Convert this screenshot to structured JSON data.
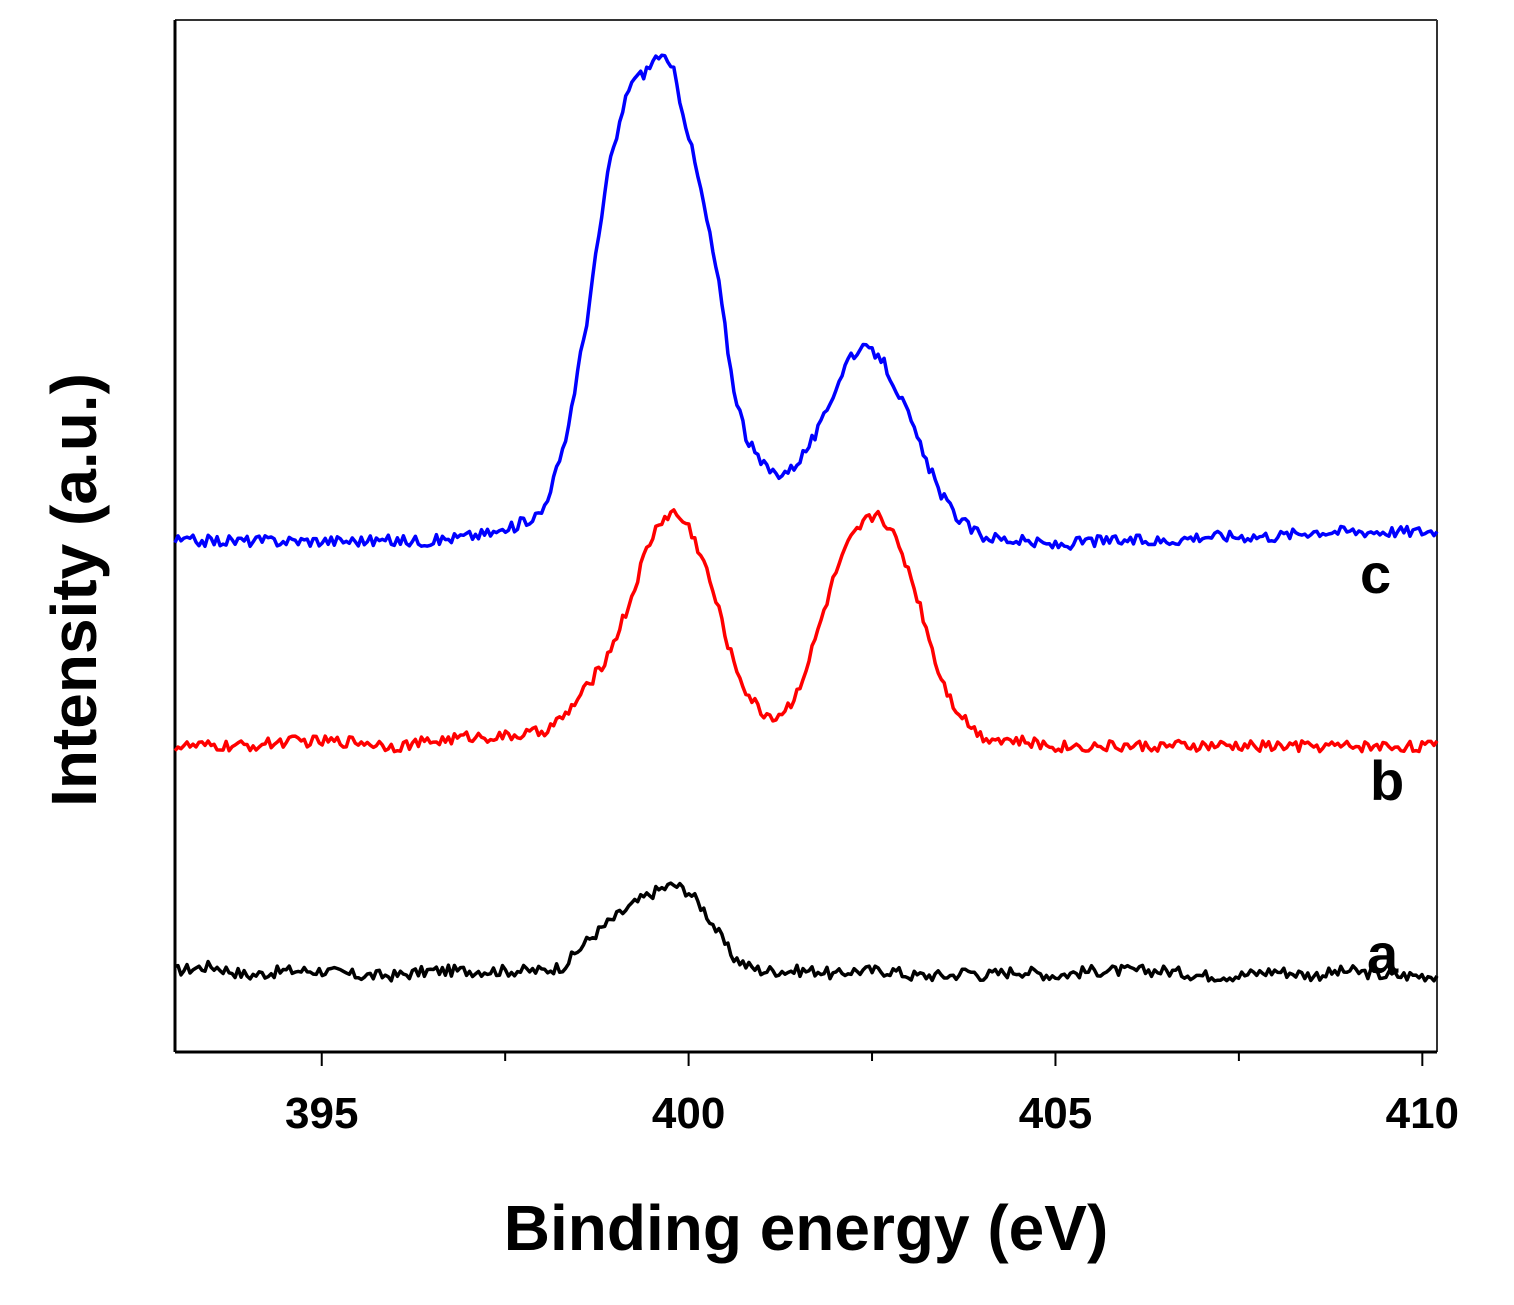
{
  "chart_data": {
    "type": "line",
    "title": "",
    "xlabel": "Binding energy (eV)",
    "ylabel": "Intensity (a.u.)",
    "xlim": [
      393,
      410.2
    ],
    "ylim": [
      -0.8,
      10.0
    ],
    "xticks": [
      395,
      400,
      405,
      410
    ],
    "xtick_labels": [
      "395",
      "400",
      "405",
      "410"
    ],
    "yticks": [],
    "grid": false,
    "noise_amplitude": 0.06,
    "x": [
      393.0,
      393.5,
      394.0,
      394.5,
      395.0,
      395.5,
      396.0,
      396.5,
      397.0,
      397.5,
      398.0,
      398.3,
      398.6,
      398.9,
      399.2,
      399.4,
      399.6,
      399.8,
      400.0,
      400.2,
      400.4,
      400.6,
      400.8,
      401.0,
      401.2,
      401.4,
      401.6,
      401.8,
      402.0,
      402.2,
      402.4,
      402.6,
      402.8,
      403.0,
      403.2,
      403.4,
      403.6,
      403.8,
      404.0,
      404.5,
      405.0,
      405.5,
      406.0,
      406.5,
      407.0,
      407.5,
      408.0,
      408.5,
      409.0,
      409.5,
      410.0,
      410.2
    ],
    "series": [
      {
        "name": "a",
        "color": "#000000",
        "values": [
          0.05,
          0.1,
          0.0,
          0.05,
          0.05,
          0.0,
          0.0,
          0.05,
          0.05,
          0.05,
          0.05,
          0.1,
          0.35,
          0.55,
          0.72,
          0.82,
          0.9,
          0.95,
          0.88,
          0.7,
          0.45,
          0.2,
          0.1,
          0.05,
          0.05,
          0.05,
          0.05,
          0.05,
          0.0,
          0.05,
          0.05,
          0.05,
          0.05,
          0.0,
          0.0,
          0.0,
          0.0,
          0.05,
          0.0,
          0.05,
          0.0,
          0.05,
          0.05,
          0.05,
          0.0,
          0.0,
          0.05,
          0.0,
          0.05,
          0.0,
          0.0,
          0.0
        ]
      },
      {
        "name": "b",
        "color": "#ff0000",
        "values": [
          2.4,
          2.4,
          2.4,
          2.45,
          2.45,
          2.45,
          2.4,
          2.45,
          2.5,
          2.5,
          2.55,
          2.7,
          3.0,
          3.35,
          3.9,
          4.4,
          4.75,
          4.85,
          4.7,
          4.35,
          3.85,
          3.3,
          2.95,
          2.75,
          2.7,
          2.85,
          3.2,
          3.7,
          4.2,
          4.55,
          4.75,
          4.85,
          4.6,
          4.25,
          3.75,
          3.2,
          2.85,
          2.65,
          2.5,
          2.45,
          2.4,
          2.4,
          2.4,
          2.4,
          2.4,
          2.4,
          2.4,
          2.4,
          2.4,
          2.4,
          2.4,
          2.4
        ]
      },
      {
        "name": "c",
        "color": "#0000ff",
        "values": [
          4.55,
          4.55,
          4.55,
          4.55,
          4.55,
          4.55,
          4.55,
          4.55,
          4.6,
          4.65,
          4.85,
          5.5,
          6.8,
          8.4,
          9.35,
          9.45,
          9.65,
          9.45,
          8.8,
          8.1,
          7.3,
          6.2,
          5.6,
          5.35,
          5.25,
          5.3,
          5.5,
          5.75,
          6.15,
          6.5,
          6.55,
          6.5,
          6.2,
          5.85,
          5.45,
          5.1,
          4.85,
          4.7,
          4.6,
          4.55,
          4.5,
          4.55,
          4.55,
          4.55,
          4.6,
          4.6,
          4.6,
          4.65,
          4.65,
          4.65,
          4.65,
          4.65
        ]
      }
    ]
  }
}
